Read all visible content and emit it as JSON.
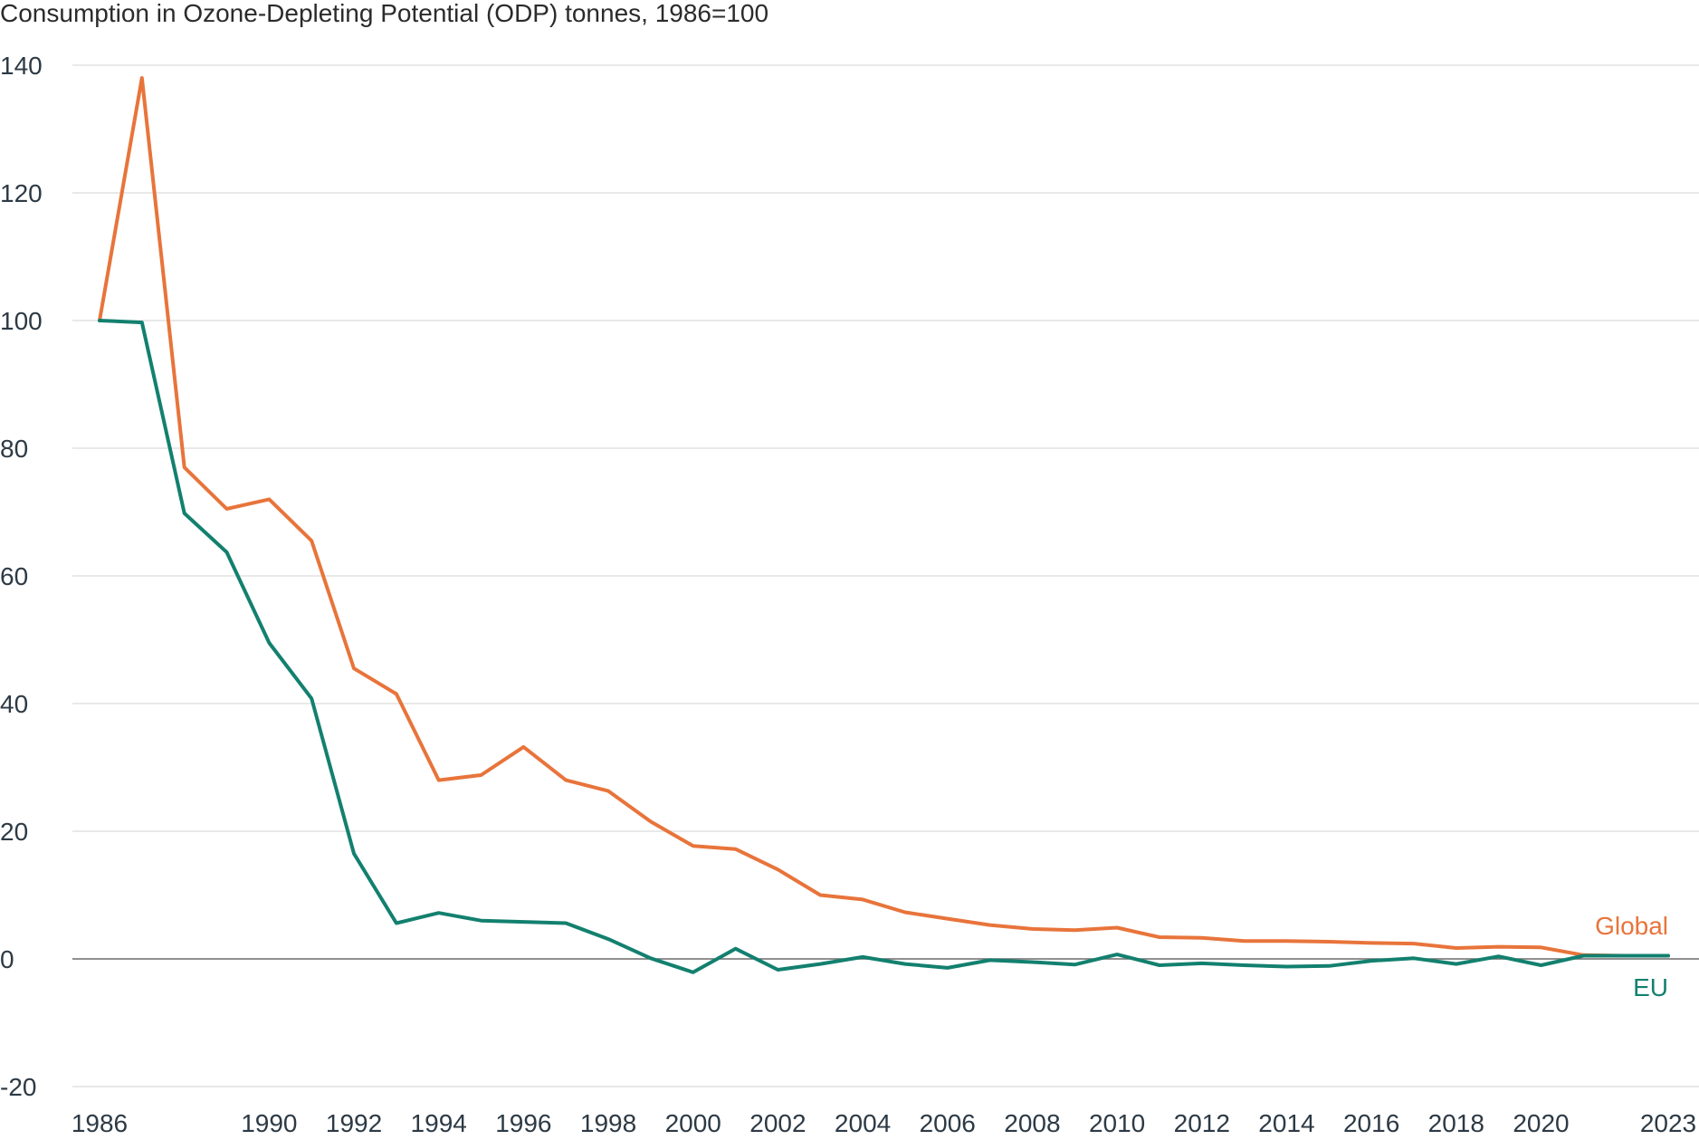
{
  "chart_data": {
    "type": "line",
    "title": "Consumption in Ozone-Depleting Potential (ODP) tonnes, 1986=100",
    "xlabel": "",
    "ylabel": "",
    "x": [
      1986,
      1987,
      1988,
      1989,
      1990,
      1991,
      1992,
      1993,
      1994,
      1995,
      1996,
      1997,
      1998,
      1999,
      2000,
      2001,
      2002,
      2003,
      2004,
      2005,
      2006,
      2007,
      2008,
      2009,
      2010,
      2011,
      2012,
      2013,
      2014,
      2015,
      2016,
      2017,
      2018,
      2019,
      2020,
      2021,
      2022,
      2023
    ],
    "xlim": [
      1986,
      2023
    ],
    "ylim": [
      -20,
      140
    ],
    "x_ticks": [
      "1986",
      "1990",
      "1992",
      "1994",
      "1996",
      "1998",
      "2000",
      "2002",
      "2004",
      "2006",
      "2008",
      "2010",
      "2012",
      "2014",
      "2016",
      "2018",
      "2020",
      "2023"
    ],
    "y_ticks": [
      "140",
      "120",
      "100",
      "80",
      "60",
      "40",
      "20",
      "0",
      "-20"
    ],
    "grid": "horizontal",
    "series": [
      {
        "name": "Global",
        "color": "#e8743b",
        "values": [
          100,
          138,
          77,
          70.5,
          72,
          65.5,
          45.5,
          41.5,
          28,
          28.8,
          33.2,
          28,
          26.3,
          21.5,
          17.7,
          17.2,
          14,
          10,
          9.3,
          7.3,
          6.3,
          5.3,
          4.7,
          4.5,
          4.9,
          3.4,
          3.3,
          2.8,
          2.8,
          2.7,
          2.5,
          2.4,
          1.7,
          1.9,
          1.8,
          0.6,
          0.5,
          0.5
        ]
      },
      {
        "name": "EU",
        "color": "#13806f",
        "values": [
          100,
          99.7,
          69.8,
          63.7,
          49.5,
          40.8,
          16.5,
          5.6,
          7.2,
          6,
          5.8,
          5.6,
          3.1,
          0.1,
          -2.1,
          1.6,
          -1.7,
          -0.8,
          0.3,
          -0.8,
          -1.4,
          -0.2,
          -0.5,
          -0.9,
          0.7,
          -1.0,
          -0.7,
          -1.0,
          -1.2,
          -1.1,
          -0.3,
          0.1,
          -0.8,
          0.4,
          -1.0,
          0.5,
          0.5,
          0.5
        ]
      }
    ],
    "annotations": [
      {
        "text": "Global",
        "color": "#e8743b"
      },
      {
        "text": "EU",
        "color": "#13806f"
      }
    ]
  }
}
